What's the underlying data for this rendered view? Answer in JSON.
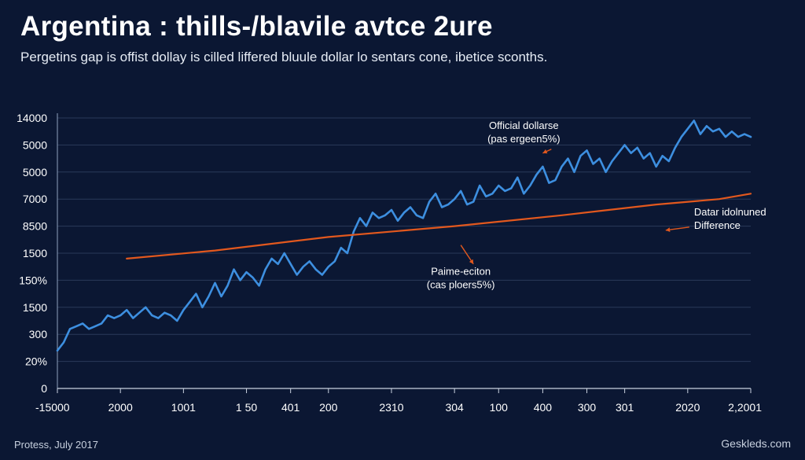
{
  "title": "Argentina : thills-/blavile avtce 2ure",
  "subtitle": "Pergetins gap is offist dollay is cilled liffered bluule dollar lo sentars cone, ibetice sconths.",
  "footer": {
    "source": "Protess, July 2017",
    "brand": "Geskleds.com"
  },
  "colors": {
    "background": "#0b1733",
    "blue_series": "#3d8fe0",
    "orange_series": "#e2581e",
    "grid": "#2a3a5a"
  },
  "chart_data": {
    "type": "line",
    "title": "Argentina : thills-/blavile avtce 2ure",
    "subtitle": "Pergetins gap is offist dollay is cilled liffered bluule dollar lo sentars cone, ibetice sconths.",
    "xlabel": "",
    "ylabel": "",
    "grid": true,
    "ylim": [
      0,
      10
    ],
    "xlim": [
      0,
      11
    ],
    "y_tick_labels": [
      "0",
      "20%",
      "300",
      "1500",
      "150%",
      "1500",
      "8500",
      "7000",
      "5000",
      "5000",
      "14000"
    ],
    "x_tick_labels": [
      "-15000",
      "2000",
      "1001",
      "1 50",
      "401",
      "200",
      "2310",
      "304",
      "100",
      "400",
      "300",
      "301",
      "2020",
      "2,2001"
    ],
    "x_tick_positions": [
      0,
      1,
      2,
      3,
      3.7,
      4.3,
      5.3,
      6.3,
      7,
      7.7,
      8.4,
      9,
      10,
      11
    ],
    "annotations": [
      {
        "lines": [
          "Official dollarse",
          "(pas ergeen5%)"
        ],
        "x": 7.4,
        "y": 9.6,
        "arrow_to": [
          7.7,
          8.7
        ]
      },
      {
        "lines": [
          "Datar idolnuned",
          "Difference"
        ],
        "x": 10.1,
        "y": 6.4,
        "arrow_to": [
          9.3,
          6.2
        ]
      },
      {
        "lines": [
          "Paime-eciton",
          "(cas ploers5%)"
        ],
        "x": 6.4,
        "y": 4.2,
        "arrow_from": [
          6.4,
          5.3
        ],
        "arrow_to": [
          6.6,
          4.6
        ]
      }
    ],
    "series": [
      {
        "name": "",
        "color": "#3d8fe0",
        "x": [
          0,
          0.1,
          0.2,
          0.3,
          0.4,
          0.5,
          0.6,
          0.7,
          0.8,
          0.9,
          1.0,
          1.1,
          1.2,
          1.3,
          1.4,
          1.5,
          1.6,
          1.7,
          1.8,
          1.9,
          2.0,
          2.1,
          2.2,
          2.3,
          2.4,
          2.5,
          2.6,
          2.7,
          2.8,
          2.9,
          3.0,
          3.1,
          3.2,
          3.3,
          3.4,
          3.5,
          3.6,
          3.7,
          3.8,
          3.9,
          4.0,
          4.1,
          4.2,
          4.3,
          4.4,
          4.5,
          4.6,
          4.7,
          4.8,
          4.9,
          5.0,
          5.1,
          5.2,
          5.3,
          5.4,
          5.5,
          5.6,
          5.7,
          5.8,
          5.9,
          6.0,
          6.1,
          6.2,
          6.3,
          6.4,
          6.5,
          6.6,
          6.7,
          6.8,
          6.9,
          7.0,
          7.1,
          7.2,
          7.3,
          7.4,
          7.5,
          7.6,
          7.7,
          7.8,
          7.9,
          8.0,
          8.1,
          8.2,
          8.3,
          8.4,
          8.5,
          8.6,
          8.7,
          8.8,
          8.9,
          9.0,
          9.1,
          9.2,
          9.3,
          9.4,
          9.5,
          9.6,
          9.7,
          9.8,
          9.9,
          10.0,
          10.1,
          10.2,
          10.3,
          10.4,
          10.5,
          10.6,
          10.7,
          10.8,
          10.9,
          11.0
        ],
        "y": [
          1.4,
          1.7,
          2.2,
          2.3,
          2.4,
          2.2,
          2.3,
          2.4,
          2.7,
          2.6,
          2.7,
          2.9,
          2.6,
          2.8,
          3.0,
          2.7,
          2.6,
          2.8,
          2.7,
          2.5,
          2.9,
          3.2,
          3.5,
          3.0,
          3.4,
          3.9,
          3.4,
          3.8,
          4.4,
          4.0,
          4.3,
          4.1,
          3.8,
          4.4,
          4.8,
          4.6,
          5.0,
          4.6,
          4.2,
          4.5,
          4.7,
          4.4,
          4.2,
          4.5,
          4.7,
          5.2,
          5.0,
          5.8,
          6.3,
          6.0,
          6.5,
          6.3,
          6.4,
          6.6,
          6.2,
          6.5,
          6.7,
          6.4,
          6.3,
          6.9,
          7.2,
          6.7,
          6.8,
          7.0,
          7.3,
          6.8,
          6.9,
          7.5,
          7.1,
          7.2,
          7.5,
          7.3,
          7.4,
          7.8,
          7.2,
          7.5,
          7.9,
          8.2,
          7.6,
          7.7,
          8.2,
          8.5,
          8.0,
          8.6,
          8.8,
          8.3,
          8.5,
          8.0,
          8.4,
          8.7,
          9.0,
          8.7,
          8.9,
          8.5,
          8.7,
          8.2,
          8.6,
          8.4,
          8.9,
          9.3,
          9.6,
          9.9,
          9.4,
          9.7,
          9.5,
          9.6,
          9.3,
          9.5,
          9.3,
          9.4,
          9.3
        ]
      },
      {
        "name": "",
        "color": "#e2581e",
        "x": [
          1.1,
          2.5,
          4.3,
          6.3,
          8.0,
          9.5,
          10.5,
          11.0
        ],
        "y": [
          4.8,
          5.1,
          5.6,
          6.0,
          6.4,
          6.8,
          7.0,
          7.2
        ]
      }
    ]
  }
}
